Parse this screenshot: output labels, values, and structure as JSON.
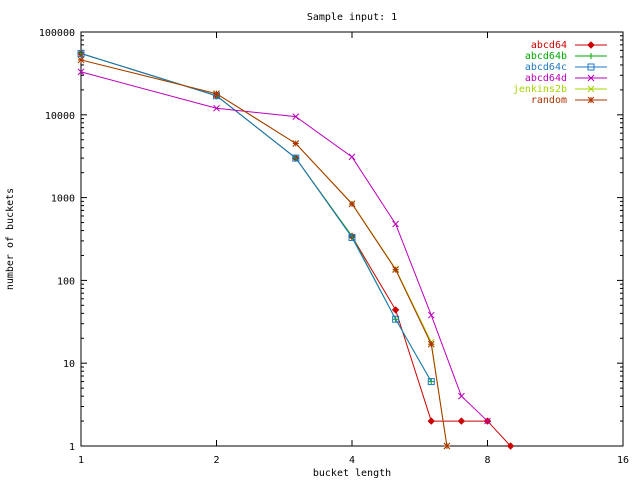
{
  "chart_data": {
    "type": "line",
    "title": "Sample input: 1",
    "xlabel": "bucket length",
    "ylabel": "number of buckets",
    "x_scale": "log2",
    "y_scale": "log10",
    "xlim": [
      1,
      16
    ],
    "ylim": [
      1,
      100000
    ],
    "x_ticks": [
      1,
      2,
      4,
      8,
      16
    ],
    "x_tick_labels": [
      "1",
      "2",
      "4",
      "8",
      "16"
    ],
    "y_ticks": [
      1,
      10,
      100,
      1000,
      10000,
      100000
    ],
    "y_tick_labels": [
      "1",
      "10",
      "100",
      "1000",
      "10000",
      "100000"
    ],
    "legend_position": "top-right",
    "grid": false,
    "series": [
      {
        "name": "abcd64",
        "color": "#cc0000",
        "marker": "diamond",
        "points": [
          [
            1,
            55000
          ],
          [
            2,
            17000
          ],
          [
            3,
            3000
          ],
          [
            4,
            340
          ],
          [
            5,
            44
          ],
          [
            6,
            2
          ],
          [
            7,
            2
          ],
          [
            8,
            2
          ],
          [
            9,
            1
          ]
        ]
      },
      {
        "name": "abcd64b",
        "color": "#00aa00",
        "marker": "plus",
        "points": [
          [
            1,
            55000
          ],
          [
            2,
            17000
          ],
          [
            3,
            3000
          ],
          [
            4,
            340
          ],
          [
            5,
            34
          ],
          [
            6,
            6
          ]
        ]
      },
      {
        "name": "abcd64c",
        "color": "#1f77c4",
        "marker": "square",
        "points": [
          [
            1,
            55000
          ],
          [
            2,
            17000
          ],
          [
            3,
            3000
          ],
          [
            4,
            330
          ],
          [
            5,
            34
          ],
          [
            6,
            6
          ]
        ]
      },
      {
        "name": "abcd64d",
        "color": "#bb00bb",
        "marker": "cross",
        "points": [
          [
            1,
            33000
          ],
          [
            2,
            12000
          ],
          [
            3,
            9500
          ],
          [
            4,
            3100
          ],
          [
            5,
            480
          ],
          [
            6,
            38
          ],
          [
            7,
            4
          ],
          [
            8,
            2
          ]
        ]
      },
      {
        "name": "jenkins2b",
        "color": "#a6d400",
        "marker": "cross",
        "points": [
          [
            1,
            46000
          ],
          [
            2,
            18000
          ],
          [
            3,
            4500
          ],
          [
            4,
            850
          ],
          [
            5,
            138
          ],
          [
            6,
            18
          ],
          [
            6.5,
            1
          ]
        ]
      },
      {
        "name": "random",
        "color": "#aa3300",
        "marker": "star",
        "points": [
          [
            1,
            46000
          ],
          [
            2,
            18000
          ],
          [
            3,
            4500
          ],
          [
            4,
            840
          ],
          [
            5,
            135
          ],
          [
            6,
            17
          ],
          [
            6.5,
            1
          ]
        ]
      }
    ]
  }
}
